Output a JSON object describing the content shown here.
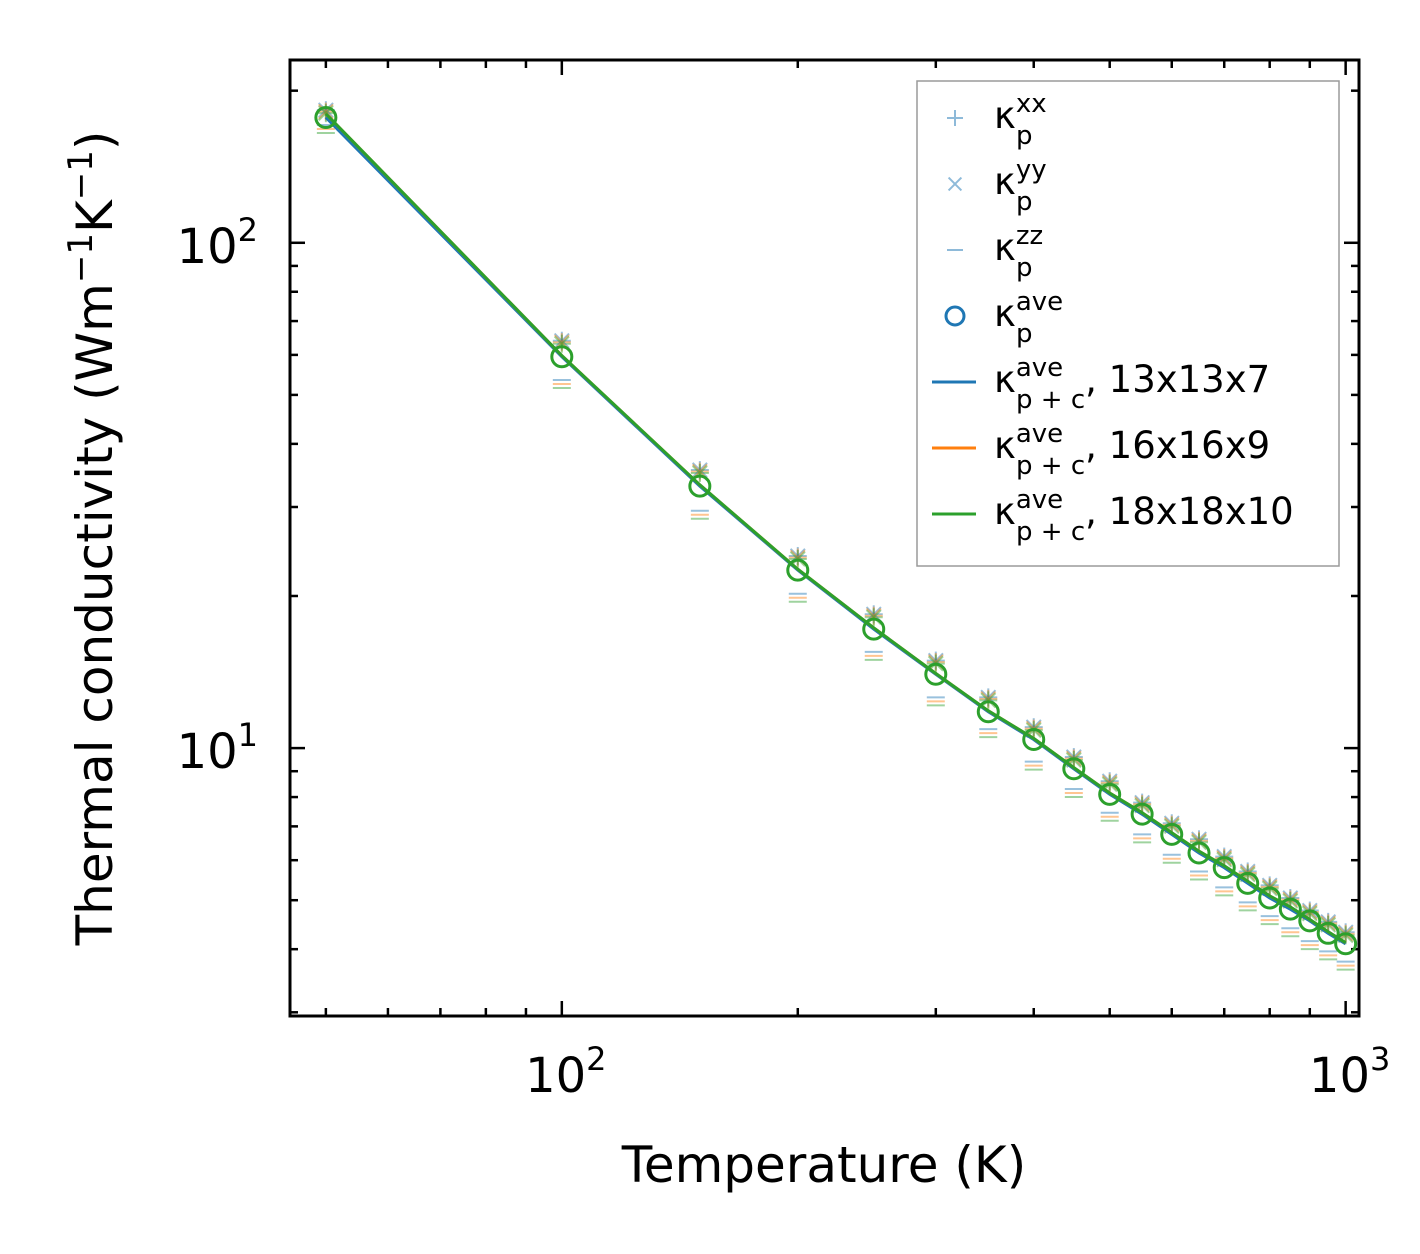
{
  "chart_data": {
    "type": "line",
    "x_scale": "log",
    "y_scale": "log",
    "xlabel": "Temperature (K)",
    "ylabel": {
      "base": "Thermal conductivity (Wm",
      "exp1": "−1",
      "mid": "K",
      "exp2": "−1",
      "end": ")"
    },
    "xlim": [
      45,
      1040
    ],
    "ylim": [
      2.95,
      230
    ],
    "x_ticks": [
      {
        "base": "10",
        "exp": "2",
        "value": 100
      },
      {
        "base": "10",
        "exp": "3",
        "value": 1000
      }
    ],
    "y_ticks": [
      {
        "base": "10",
        "exp": "1",
        "value": 10
      },
      {
        "base": "10",
        "exp": "2",
        "value": 100
      }
    ],
    "x": [
      50,
      100,
      150,
      200,
      250,
      300,
      350,
      400,
      450,
      500,
      550,
      600,
      650,
      700,
      750,
      800,
      850,
      900,
      950,
      1000
    ],
    "markers": [
      {
        "name": "kxx",
        "color": "#1f77b4",
        "symbol": "plus",
        "values": [
          183,
          64,
          35.5,
          24.0,
          18.4,
          14.9,
          12.6,
          11.0,
          9.6,
          8.6,
          7.8,
          7.1,
          6.6,
          6.1,
          5.7,
          5.35,
          5.05,
          4.77,
          4.53,
          4.32
        ]
      },
      {
        "name": "kyy",
        "color": "#1f77b4",
        "symbol": "x",
        "values": [
          183,
          64,
          35.5,
          24.0,
          18.4,
          14.9,
          12.6,
          11.0,
          9.6,
          8.6,
          7.8,
          7.1,
          6.6,
          6.1,
          5.7,
          5.35,
          5.05,
          4.77,
          4.53,
          4.32
        ]
      },
      {
        "name": "kzz",
        "color": "#1f77b4",
        "symbol": "hline",
        "values": [
          171,
          53.5,
          29.5,
          20.2,
          15.5,
          12.6,
          10.9,
          9.4,
          8.3,
          7.45,
          6.75,
          6.15,
          5.7,
          5.3,
          4.95,
          4.65,
          4.4,
          4.15,
          3.96,
          3.78
        ]
      },
      {
        "name": "kave",
        "color": "#1f77b4",
        "symbol": "circle",
        "values": [
          177,
          59.5,
          33.0,
          22.5,
          17.2,
          14.0,
          11.8,
          10.4,
          9.1,
          8.1,
          7.4,
          6.75,
          6.2,
          5.8,
          5.4,
          5.05,
          4.8,
          4.55,
          4.3,
          4.1
        ]
      }
    ],
    "series": [
      {
        "name": "13x13x7",
        "color": "#1f77b4",
        "values": [
          177,
          59.5,
          33.0,
          22.5,
          17.2,
          14.0,
          11.8,
          10.4,
          9.1,
          8.1,
          7.4,
          6.75,
          6.2,
          5.8,
          5.4,
          5.05,
          4.8,
          4.55,
          4.3,
          4.1
        ]
      },
      {
        "name": "16x16x9",
        "color": "#ff7f0e",
        "values": [
          180,
          59.8,
          33.2,
          22.6,
          17.3,
          14.05,
          11.85,
          10.45,
          9.15,
          8.15,
          7.45,
          6.8,
          6.25,
          5.85,
          5.45,
          5.1,
          4.85,
          4.58,
          4.33,
          4.12
        ]
      },
      {
        "name": "18x18x10",
        "color": "#2ca02c",
        "values": [
          180,
          59.8,
          33.2,
          22.6,
          17.3,
          14.05,
          11.85,
          10.45,
          9.15,
          8.15,
          7.45,
          6.8,
          6.25,
          5.85,
          5.45,
          5.1,
          4.85,
          4.58,
          4.33,
          4.12
        ]
      }
    ],
    "legend": {
      "placement": "top-right",
      "entries": [
        {
          "kappa": "κ",
          "sup": "xx",
          "sub": "p",
          "suffix": "",
          "color": "#1f77b4",
          "symbol": "plus"
        },
        {
          "kappa": "κ",
          "sup": "yy",
          "sub": "p",
          "suffix": "",
          "color": "#1f77b4",
          "symbol": "x"
        },
        {
          "kappa": "κ",
          "sup": "zz",
          "sub": "p",
          "suffix": "",
          "color": "#1f77b4",
          "symbol": "hline"
        },
        {
          "kappa": "κ",
          "sup": "ave",
          "sub": "p",
          "suffix": "",
          "color": "#1f77b4",
          "symbol": "circle"
        },
        {
          "kappa": "κ",
          "sup": "ave",
          "sub": "p + c",
          "suffix": ", 13x13x7",
          "color": "#1f77b4",
          "symbol": "line"
        },
        {
          "kappa": "κ",
          "sup": "ave",
          "sub": "p + c",
          "suffix": ", 16x16x9",
          "color": "#ff7f0e",
          "symbol": "line"
        },
        {
          "kappa": "κ",
          "sup": "ave",
          "sub": "p + c",
          "suffix": ", 18x18x10",
          "color": "#2ca02c",
          "symbol": "line"
        }
      ]
    }
  }
}
